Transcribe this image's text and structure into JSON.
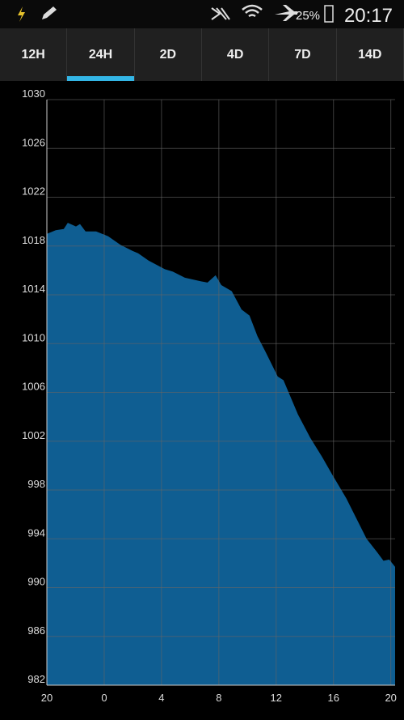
{
  "status": {
    "battery": "25%",
    "time": "20:17"
  },
  "tabs": [
    "12H",
    "24H",
    "2D",
    "4D",
    "7D",
    "14D"
  ],
  "selected_tab": 1,
  "chart_data": {
    "type": "area",
    "x": [
      20,
      20.62,
      21.18,
      21.46,
      22.03,
      22.31,
      22.7,
      23.44,
      24.28,
      25.13,
      25.97,
      26.37,
      27.1,
      28.23,
      28.79,
      29.63,
      30.76,
      31.21,
      31.77,
      32.17,
      32.9,
      33.58,
      34.14,
      34.7,
      35.27,
      36.11,
      36.51,
      37.52,
      38.37,
      39.21,
      39.89,
      40.9,
      42.31,
      43.04,
      43.49,
      43.89,
      44.3
    ],
    "values": [
      1019.0,
      1019.3,
      1019.4,
      1019.9,
      1019.6,
      1019.8,
      1019.2,
      1019.2,
      1018.8,
      1018.1,
      1017.6,
      1017.4,
      1016.8,
      1016.1,
      1015.9,
      1015.4,
      1015.1,
      1015.0,
      1015.6,
      1014.8,
      1014.3,
      1012.8,
      1012.3,
      1010.6,
      1009.3,
      1007.3,
      1007.0,
      1004.2,
      1002.3,
      1000.7,
      999.3,
      997.3,
      994.0,
      992.9,
      992.2,
      992.3,
      991.7
    ],
    "color": "#0f5e92",
    "xlim": [
      20,
      44.3
    ],
    "xticks": [
      {
        "value": 20,
        "label": "20"
      },
      {
        "value": 24,
        "label": "0"
      },
      {
        "value": 28,
        "label": "4"
      },
      {
        "value": 32,
        "label": "8"
      },
      {
        "value": 36,
        "label": "12"
      },
      {
        "value": 40,
        "label": "16"
      },
      {
        "value": 44,
        "label": "20"
      }
    ],
    "ylim": [
      982,
      1030
    ],
    "yticks": [
      982,
      986,
      990,
      994,
      998,
      1002,
      1006,
      1010,
      1014,
      1018,
      1022,
      1026,
      1030
    ],
    "grid": true
  }
}
